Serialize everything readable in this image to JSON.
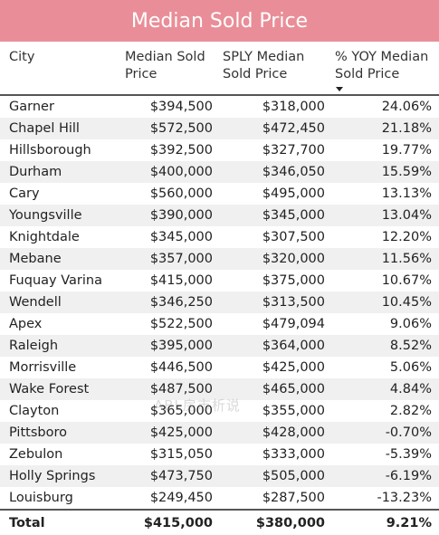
{
  "title": "Median Sold Price",
  "columns": {
    "city": "City",
    "median_sold_price": "Median Sold Price",
    "sply_median_sold_price": "SPLY Median Sold Price",
    "yoy": "% YOY Median Sold Price"
  },
  "sort": {
    "column": "yoy",
    "direction": "descending",
    "icon": "sort-down-icon"
  },
  "rows": [
    {
      "city": "Garner",
      "median": "$394,500",
      "sply": "$318,000",
      "yoy": "24.06%"
    },
    {
      "city": "Chapel Hill",
      "median": "$572,500",
      "sply": "$472,450",
      "yoy": "21.18%"
    },
    {
      "city": "Hillsborough",
      "median": "$392,500",
      "sply": "$327,700",
      "yoy": "19.77%"
    },
    {
      "city": "Durham",
      "median": "$400,000",
      "sply": "$346,050",
      "yoy": "15.59%"
    },
    {
      "city": "Cary",
      "median": "$560,000",
      "sply": "$495,000",
      "yoy": "13.13%"
    },
    {
      "city": "Youngsville",
      "median": "$390,000",
      "sply": "$345,000",
      "yoy": "13.04%"
    },
    {
      "city": "Knightdale",
      "median": "$345,000",
      "sply": "$307,500",
      "yoy": "12.20%"
    },
    {
      "city": "Mebane",
      "median": "$357,000",
      "sply": "$320,000",
      "yoy": "11.56%"
    },
    {
      "city": "Fuquay Varina",
      "median": "$415,000",
      "sply": "$375,000",
      "yoy": "10.67%"
    },
    {
      "city": "Wendell",
      "median": "$346,250",
      "sply": "$313,500",
      "yoy": "10.45%"
    },
    {
      "city": "Apex",
      "median": "$522,500",
      "sply": "$479,094",
      "yoy": "9.06%"
    },
    {
      "city": "Raleigh",
      "median": "$395,000",
      "sply": "$364,000",
      "yoy": "8.52%"
    },
    {
      "city": "Morrisville",
      "median": "$446,500",
      "sply": "$425,000",
      "yoy": "5.06%"
    },
    {
      "city": "Wake Forest",
      "median": "$487,500",
      "sply": "$465,000",
      "yoy": "4.84%"
    },
    {
      "city": "Clayton",
      "median": "$365,000",
      "sply": "$355,000",
      "yoy": "2.82%"
    },
    {
      "city": "Pittsboro",
      "median": "$425,000",
      "sply": "$428,000",
      "yoy": "-0.70%"
    },
    {
      "city": "Zebulon",
      "median": "$315,050",
      "sply": "$333,000",
      "yoy": "-5.39%"
    },
    {
      "city": "Holly Springs",
      "median": "$473,750",
      "sply": "$505,000",
      "yoy": "-6.19%"
    },
    {
      "city": "Louisburg",
      "median": "$249,450",
      "sply": "$287,500",
      "yoy": "-13.23%"
    }
  ],
  "total": {
    "label": "Total",
    "median": "$415,000",
    "sply": "$380,000",
    "yoy": "9.21%"
  },
  "watermark": "ABL房市析说",
  "colors": {
    "title_bg": "#e98e98",
    "title_text": "#ffffff",
    "stripe": "#f0f0f0"
  }
}
